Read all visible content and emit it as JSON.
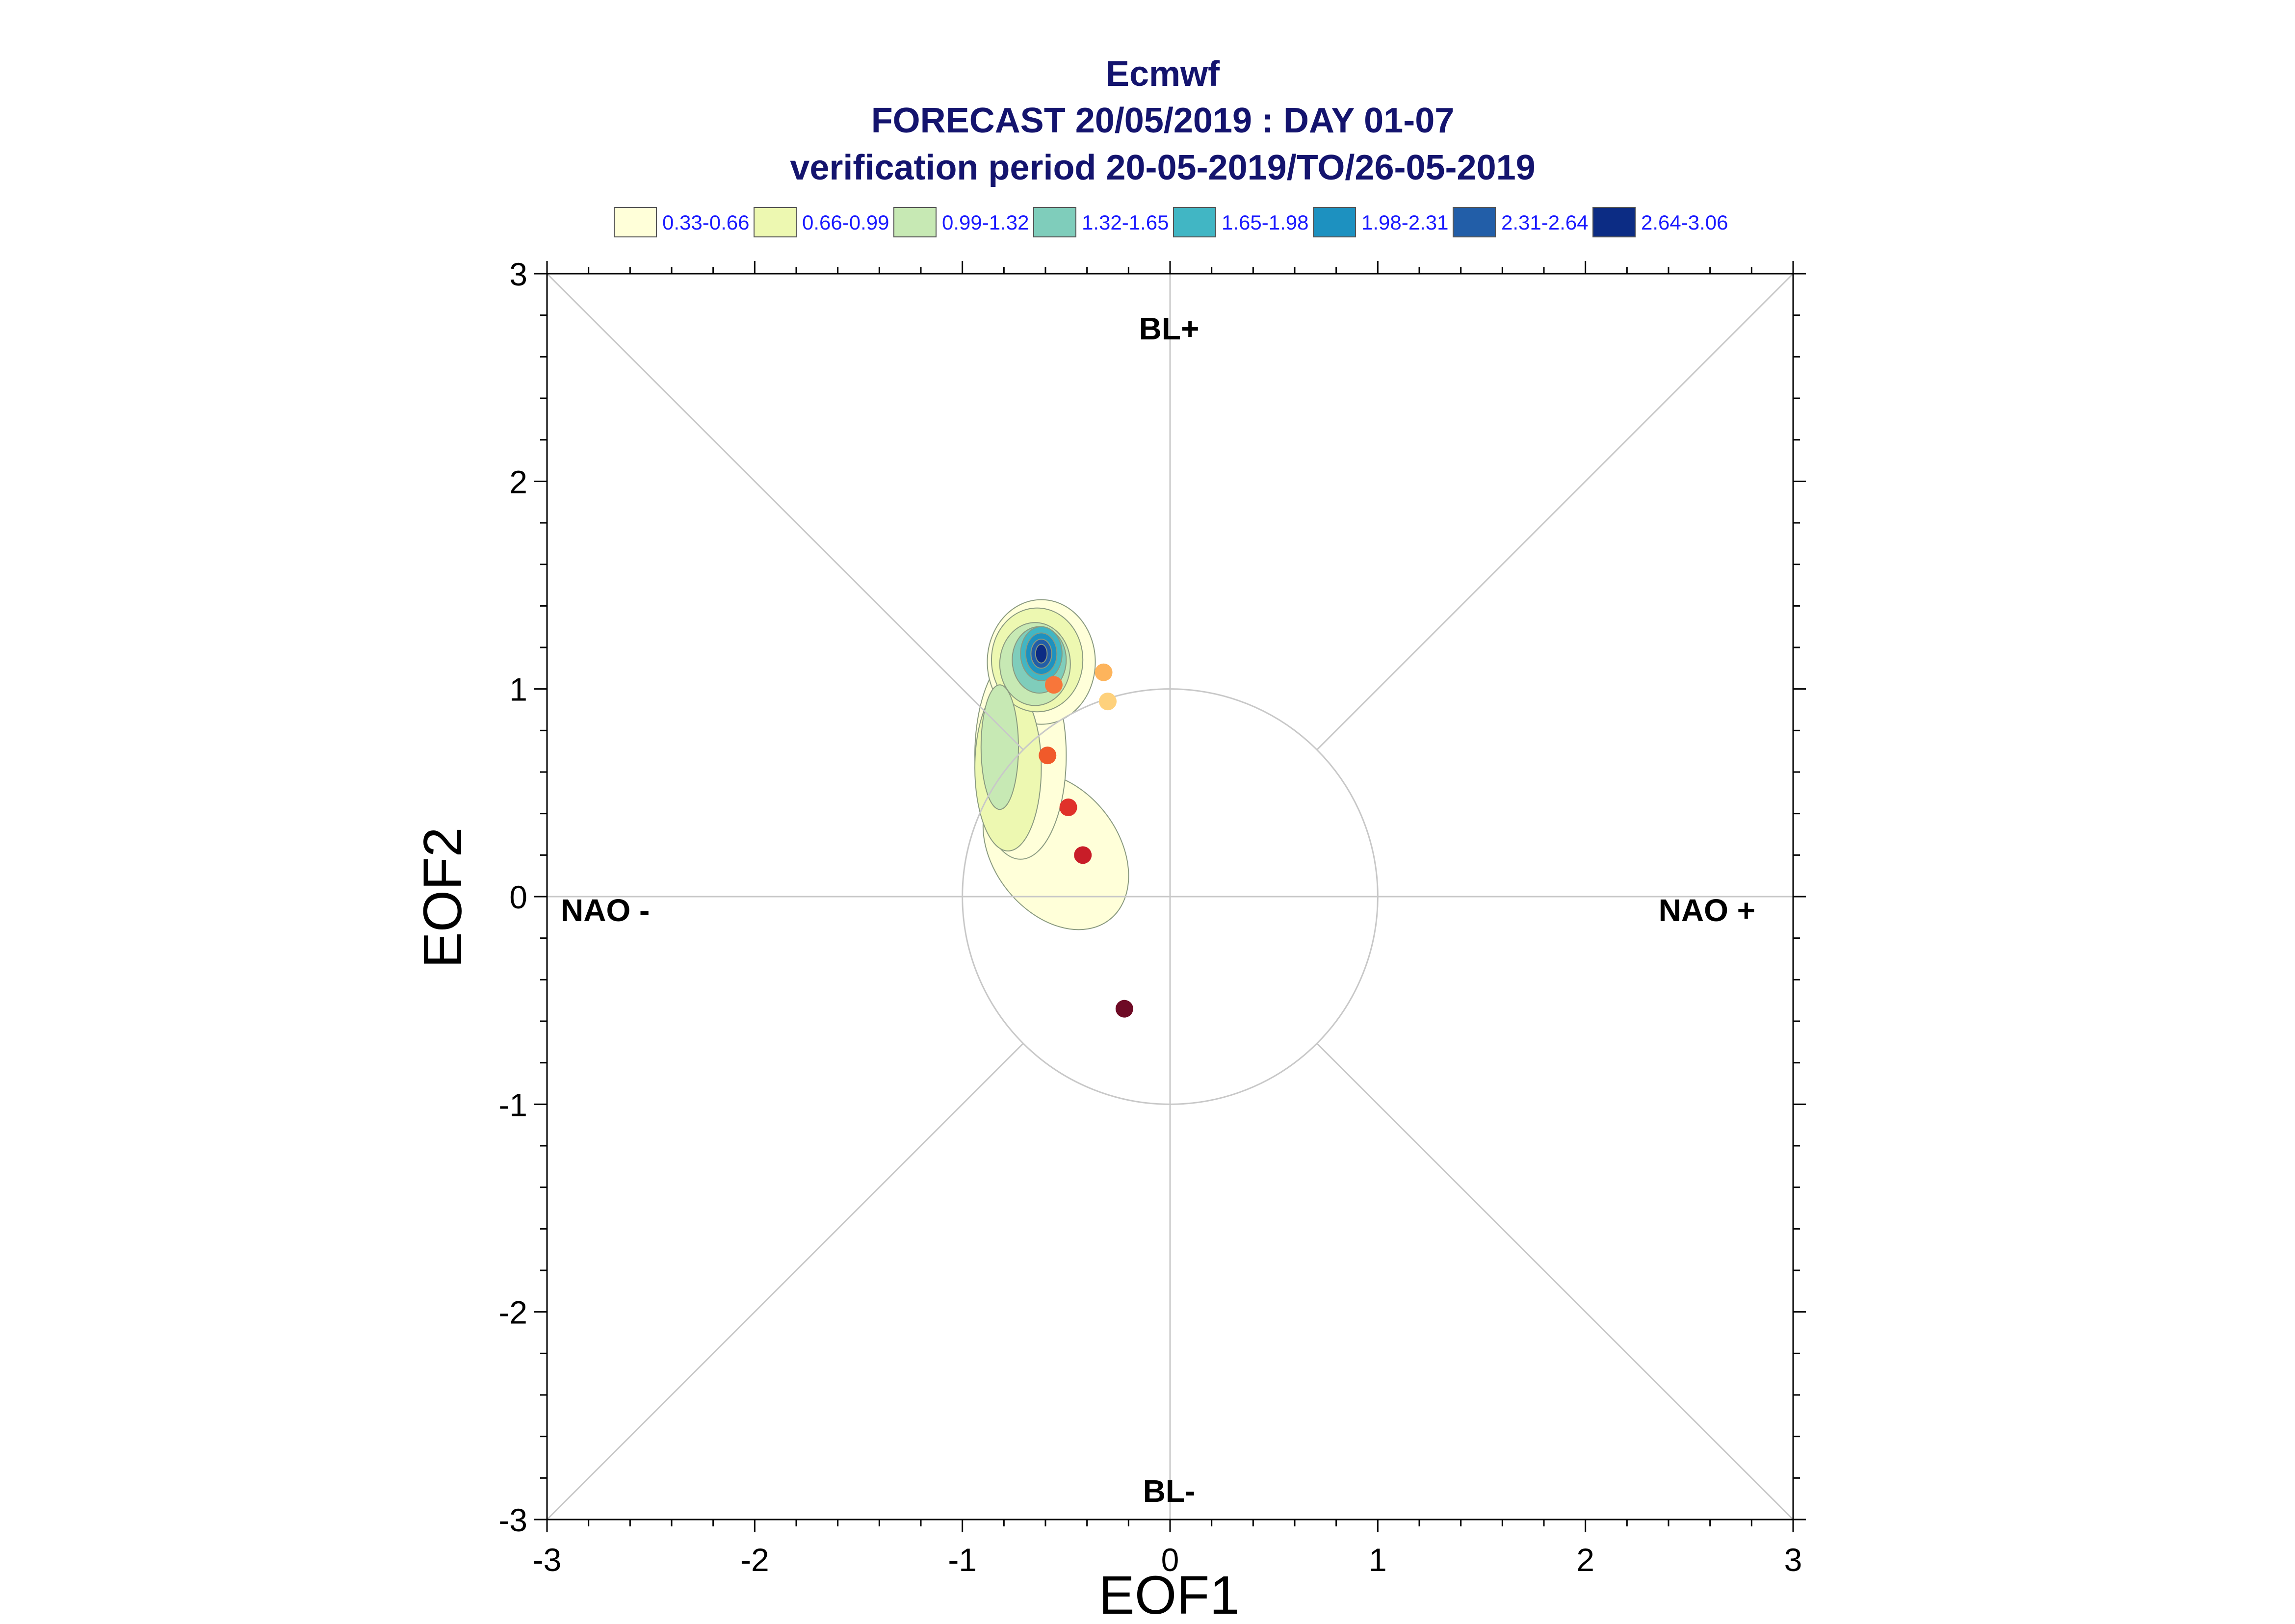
{
  "chart_data": {
    "type": "scatter",
    "title_lines": [
      "Ecmwf",
      "FORECAST 20/05/2019 : DAY 01-07",
      "verification period 20-05-2019/TO/26-05-2019"
    ],
    "xlabel": "EOF1",
    "ylabel": "EOF2",
    "xlim": [
      -3,
      3
    ],
    "ylim": [
      -3,
      3
    ],
    "xticks": [
      "-3",
      "-2",
      "-1",
      "0",
      "1",
      "2",
      "3"
    ],
    "yticks": [
      "-3",
      "-2",
      "-1",
      "0",
      "1",
      "2",
      "3"
    ],
    "regime_labels": {
      "top": "BL+",
      "bottom": "BL-",
      "left": "NAO -",
      "right": "NAO +"
    },
    "unit_circle_radius": 1,
    "grid": "diagonals and zero lines",
    "legend_position": "top",
    "density_legend": [
      {
        "label": "0.33-0.66",
        "color": "#ffffd9"
      },
      {
        "label": "0.66-0.99",
        "color": "#edf8b1"
      },
      {
        "label": "0.99-1.32",
        "color": "#c7e9b4"
      },
      {
        "label": "1.32-1.65",
        "color": "#7fcdbb"
      },
      {
        "label": "1.65-1.98",
        "color": "#41b6c4"
      },
      {
        "label": "1.98-2.31",
        "color": "#1d91c0"
      },
      {
        "label": "2.31-2.64",
        "color": "#225ea8"
      },
      {
        "label": "2.64-3.06",
        "color": "#0c2c84"
      }
    ],
    "density_peak": {
      "x": -0.62,
      "y": 1.17
    },
    "points": [
      {
        "x": -0.32,
        "y": 1.08,
        "color": "#fdb45c"
      },
      {
        "x": -0.3,
        "y": 0.94,
        "color": "#fed17c"
      },
      {
        "x": -0.56,
        "y": 1.02,
        "color": "#f8763a"
      },
      {
        "x": -0.59,
        "y": 0.68,
        "color": "#f05a2a"
      },
      {
        "x": -0.49,
        "y": 0.43,
        "color": "#e0312a"
      },
      {
        "x": -0.42,
        "y": 0.2,
        "color": "#c81d28"
      },
      {
        "x": -0.22,
        "y": -0.54,
        "color": "#6e0a25"
      }
    ]
  }
}
